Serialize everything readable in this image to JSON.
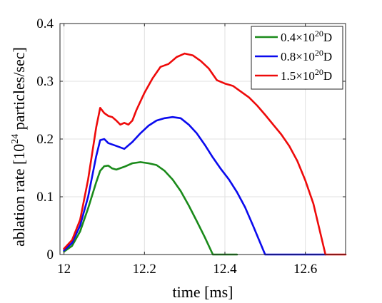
{
  "chart_data": {
    "type": "line",
    "title": "",
    "xlabel": "time [ms]",
    "ylabel_parts": [
      "ablation rate [10",
      "24",
      " particles/sec]"
    ],
    "xlim": [
      11.99,
      12.7
    ],
    "ylim": [
      0,
      0.4
    ],
    "xticks": [
      12,
      12.2,
      12.4,
      12.6
    ],
    "xtick_labels": [
      "12",
      "12.2",
      "12.4",
      "12.6"
    ],
    "yticks": [
      0,
      0.1,
      0.2,
      0.3,
      0.4
    ],
    "ytick_labels": [
      "0",
      "0.1",
      "0.2",
      "0.3",
      "0.4"
    ],
    "grid": true,
    "legend_position": "top-right",
    "series": [
      {
        "name_parts": [
          "0.4",
          "×",
          "10",
          "20",
          "D"
        ],
        "color": "#1a8a1a",
        "x": [
          12.0,
          12.02,
          12.04,
          12.06,
          12.08,
          12.09,
          12.1,
          12.11,
          12.12,
          12.13,
          12.15,
          12.17,
          12.19,
          12.21,
          12.23,
          12.25,
          12.27,
          12.29,
          12.31,
          12.33,
          12.35,
          12.37,
          12.43
        ],
        "y": [
          0.005,
          0.015,
          0.04,
          0.08,
          0.125,
          0.145,
          0.153,
          0.154,
          0.149,
          0.147,
          0.152,
          0.158,
          0.16,
          0.158,
          0.155,
          0.145,
          0.13,
          0.11,
          0.085,
          0.058,
          0.03,
          0.0,
          0.0
        ]
      },
      {
        "name_parts": [
          "0.8",
          "×",
          "10",
          "20",
          "D"
        ],
        "color": "#0a0aee",
        "x": [
          12.0,
          12.02,
          12.04,
          12.06,
          12.08,
          12.09,
          12.1,
          12.11,
          12.13,
          12.15,
          12.17,
          12.19,
          12.21,
          12.23,
          12.25,
          12.27,
          12.29,
          12.31,
          12.33,
          12.35,
          12.37,
          12.39,
          12.41,
          12.43,
          12.45,
          12.47,
          12.5,
          12.65
        ],
        "y": [
          0.007,
          0.02,
          0.05,
          0.1,
          0.17,
          0.198,
          0.2,
          0.193,
          0.188,
          0.183,
          0.195,
          0.21,
          0.223,
          0.232,
          0.236,
          0.238,
          0.236,
          0.225,
          0.21,
          0.19,
          0.168,
          0.148,
          0.13,
          0.108,
          0.082,
          0.05,
          0.0,
          0.0
        ]
      },
      {
        "name_parts": [
          "1.5",
          "×",
          "10",
          "20",
          "D"
        ],
        "color": "#ee0a0a",
        "x": [
          12.0,
          12.02,
          12.04,
          12.06,
          12.08,
          12.09,
          12.1,
          12.11,
          12.12,
          12.13,
          12.14,
          12.15,
          12.16,
          12.17,
          12.18,
          12.2,
          12.22,
          12.24,
          12.26,
          12.28,
          12.3,
          12.32,
          12.34,
          12.36,
          12.38,
          12.4,
          12.42,
          12.44,
          12.46,
          12.48,
          12.5,
          12.52,
          12.54,
          12.56,
          12.58,
          12.6,
          12.62,
          12.65,
          12.7
        ],
        "y": [
          0.01,
          0.025,
          0.06,
          0.13,
          0.22,
          0.254,
          0.245,
          0.24,
          0.238,
          0.232,
          0.225,
          0.228,
          0.225,
          0.232,
          0.25,
          0.28,
          0.305,
          0.325,
          0.33,
          0.342,
          0.348,
          0.345,
          0.335,
          0.322,
          0.302,
          0.296,
          0.292,
          0.282,
          0.272,
          0.258,
          0.242,
          0.225,
          0.208,
          0.188,
          0.162,
          0.128,
          0.088,
          0.0,
          0.0
        ]
      }
    ]
  }
}
